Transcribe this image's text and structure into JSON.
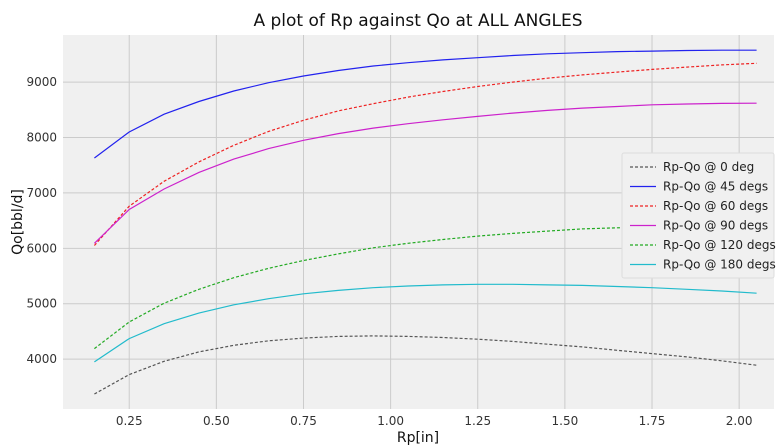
{
  "chart_data": {
    "type": "line",
    "title": "A plot of Rp against Qo at ALL ANGLES",
    "xlabel": "Rp[in]",
    "ylabel": "Qo[bbl/d]",
    "xlim": [
      0.06,
      2.1
    ],
    "ylim": [
      3100,
      9850
    ],
    "xticks": [
      0.25,
      0.5,
      0.75,
      1.0,
      1.25,
      1.5,
      1.75,
      2.0
    ],
    "xtick_labels": [
      "0.25",
      "0.50",
      "0.75",
      "1.00",
      "1.25",
      "1.50",
      "1.75",
      "2.00"
    ],
    "yticks": [
      4000,
      5000,
      6000,
      7000,
      8000,
      9000
    ],
    "ytick_labels": [
      "4000",
      "5000",
      "6000",
      "7000",
      "8000",
      "9000"
    ],
    "grid": true,
    "legend_position": "right",
    "x": [
      0.15,
      0.25,
      0.35,
      0.45,
      0.55,
      0.65,
      0.75,
      0.85,
      0.95,
      1.05,
      1.15,
      1.25,
      1.35,
      1.45,
      1.55,
      1.65,
      1.75,
      1.85,
      1.95,
      2.05
    ],
    "series": [
      {
        "name": "Rp-Qo @ 0 deg",
        "color": "#555555",
        "dashed": true,
        "values": [
          3370,
          3720,
          3960,
          4130,
          4250,
          4330,
          4380,
          4410,
          4420,
          4410,
          4390,
          4360,
          4320,
          4270,
          4220,
          4160,
          4100,
          4040,
          3970,
          3890
        ]
      },
      {
        "name": "Rp-Qo @ 45 degs",
        "color": "#2222ee",
        "dashed": false,
        "values": [
          7630,
          8100,
          8420,
          8650,
          8840,
          8990,
          9110,
          9210,
          9290,
          9350,
          9400,
          9440,
          9480,
          9510,
          9530,
          9550,
          9560,
          9570,
          9575,
          9575
        ]
      },
      {
        "name": "Rp-Qo @ 60 degs",
        "color": "#ee2222",
        "dashed": true,
        "values": [
          6050,
          6760,
          7210,
          7560,
          7860,
          8110,
          8310,
          8480,
          8610,
          8730,
          8830,
          8920,
          9000,
          9070,
          9130,
          9180,
          9230,
          9270,
          9310,
          9340
        ]
      },
      {
        "name": "Rp-Qo @ 90 degs",
        "color": "#cc22cc",
        "dashed": false,
        "values": [
          6090,
          6700,
          7070,
          7370,
          7610,
          7800,
          7950,
          8070,
          8170,
          8250,
          8320,
          8380,
          8440,
          8490,
          8530,
          8560,
          8590,
          8605,
          8615,
          8620
        ]
      },
      {
        "name": "Rp-Qo @ 120 degs",
        "color": "#22aa22",
        "dashed": true,
        "values": [
          4190,
          4670,
          5010,
          5260,
          5470,
          5640,
          5780,
          5900,
          6010,
          6090,
          6160,
          6220,
          6270,
          6310,
          6350,
          6370,
          6390,
          6400,
          6405,
          6410
        ]
      },
      {
        "name": "Rp-Qo @ 180 degs",
        "color": "#22bbcc",
        "dashed": false,
        "values": [
          3950,
          4370,
          4640,
          4830,
          4980,
          5090,
          5180,
          5240,
          5290,
          5320,
          5340,
          5350,
          5350,
          5340,
          5330,
          5310,
          5290,
          5260,
          5230,
          5190
        ]
      }
    ]
  }
}
